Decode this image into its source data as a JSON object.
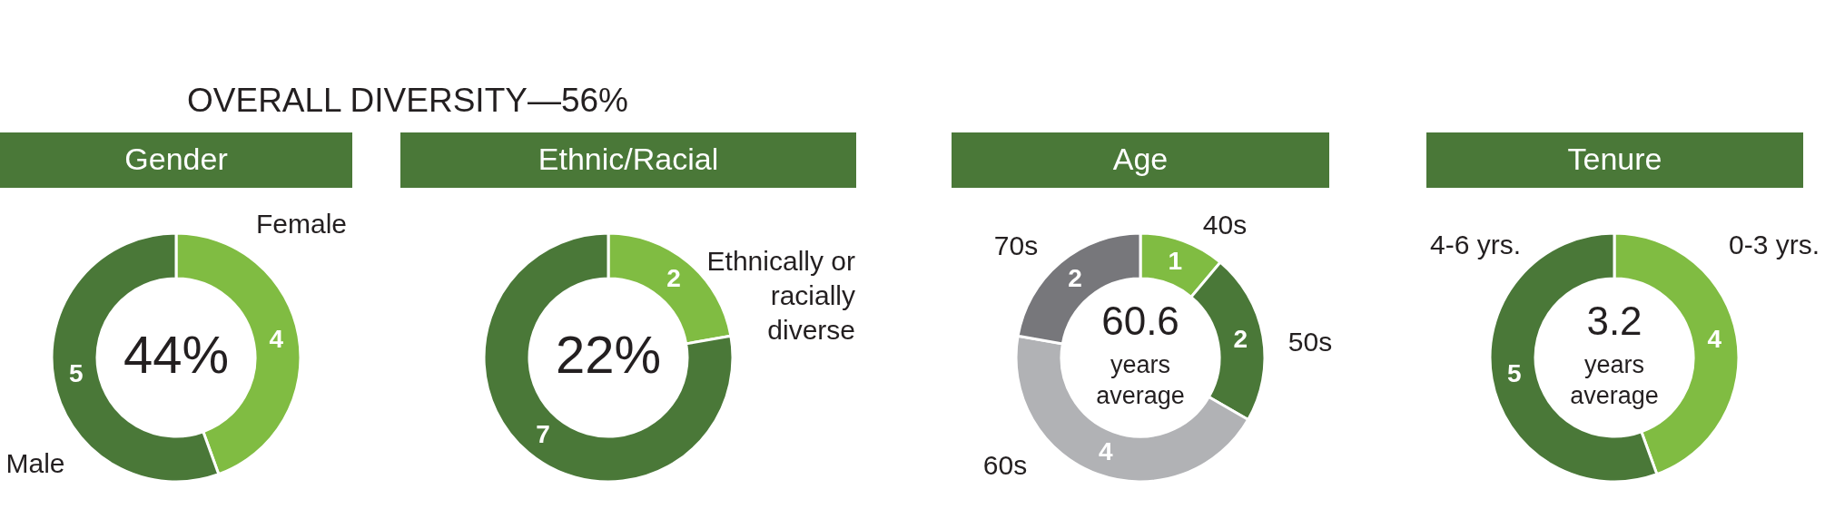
{
  "chart_data": [
    {
      "type": "other",
      "title": "OVERALL DIVERSITY—56%"
    },
    {
      "type": "donut",
      "title": "Gender",
      "categories": [
        "Female",
        "Male"
      ],
      "values": [
        4,
        5
      ],
      "colors": [
        "#80bc42",
        "#4a7838"
      ],
      "data_labels": true,
      "annotations": [
        "44%"
      ]
    },
    {
      "type": "donut",
      "title": "Ethnic/Racial",
      "categories": [
        "Ethnically or racially diverse",
        null
      ],
      "values": [
        2,
        7
      ],
      "colors": [
        "#80bc42",
        "#4a7838"
      ],
      "data_labels": true,
      "annotations": [
        "22%"
      ]
    },
    {
      "type": "donut",
      "title": "Age",
      "categories": [
        "40s",
        "50s",
        "60s",
        "70s"
      ],
      "values": [
        1,
        2,
        4,
        2
      ],
      "colors": [
        "#80bc42",
        "#4a7838",
        "#b1b2b5",
        "#77777b"
      ],
      "data_labels": true,
      "annotations": [
        "60.6",
        "years average"
      ]
    },
    {
      "type": "donut",
      "title": "Tenure",
      "categories": [
        "0-3 yrs.",
        "4-6 yrs."
      ],
      "values": [
        4,
        5
      ],
      "colors": [
        "#80bc42",
        "#4a7838"
      ],
      "data_labels": true,
      "annotations": [
        "3.2",
        "years average"
      ]
    }
  ]
}
